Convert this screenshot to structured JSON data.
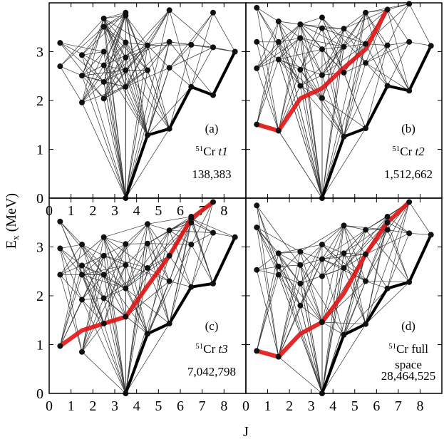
{
  "figure": {
    "ylabel_main": "E",
    "ylabel_sub": "x",
    "ylabel_unit": " (MeV)",
    "xlabel": "J"
  },
  "chart_data": [
    {
      "type": "scatter",
      "panel": "(a)",
      "label_sup": "51",
      "label_main": "Cr",
      "label_italic": "t1",
      "label_line2": "",
      "dimension": "138,383",
      "xlim": [
        0,
        9
      ],
      "ylim": [
        0,
        4
      ],
      "xticks": [
        "0",
        "1",
        "2",
        "3",
        "4",
        "5",
        "6",
        "7",
        "8"
      ],
      "yticks": [
        "0",
        "1",
        "2",
        "3"
      ],
      "levels": [
        [
          0.5,
          3.18
        ],
        [
          0.5,
          2.7
        ],
        [
          1.5,
          2.93
        ],
        [
          1.5,
          2.51
        ],
        [
          1.5,
          1.96
        ],
        [
          2.5,
          3.68
        ],
        [
          2.5,
          3.51
        ],
        [
          2.5,
          3.0
        ],
        [
          2.5,
          2.72
        ],
        [
          2.5,
          2.38
        ],
        [
          2.5,
          2.04
        ],
        [
          3.5,
          3.8
        ],
        [
          3.5,
          3.74
        ],
        [
          3.5,
          3.19
        ],
        [
          3.5,
          2.88
        ],
        [
          3.5,
          2.62
        ],
        [
          3.5,
          2.28
        ],
        [
          3.5,
          0.0
        ],
        [
          4.5,
          3.13
        ],
        [
          4.5,
          2.62
        ],
        [
          4.5,
          1.29
        ],
        [
          5.5,
          3.85
        ],
        [
          5.5,
          3.2
        ],
        [
          5.5,
          2.67
        ],
        [
          5.5,
          1.42
        ],
        [
          6.5,
          3.14
        ],
        [
          6.5,
          2.28
        ],
        [
          7.5,
          3.8
        ],
        [
          7.5,
          3.09
        ],
        [
          7.5,
          2.11
        ],
        [
          8.5,
          3.0
        ]
      ],
      "yrast": [
        [
          3.5,
          0.0
        ],
        [
          4.5,
          1.29
        ],
        [
          5.5,
          1.42
        ],
        [
          6.5,
          2.28
        ],
        [
          7.5,
          2.11
        ],
        [
          8.5,
          3.0
        ]
      ],
      "red_band": []
    },
    {
      "type": "scatter",
      "panel": "(b)",
      "label_sup": "51",
      "label_main": "Cr",
      "label_italic": "t2",
      "label_line2": "",
      "dimension": "1,512,662",
      "xlim": [
        0,
        9
      ],
      "ylim": [
        0,
        4
      ],
      "xticks": [],
      "yticks": [],
      "levels": [
        [
          0.5,
          3.9
        ],
        [
          0.5,
          3.2
        ],
        [
          0.5,
          2.66
        ],
        [
          0.5,
          1.51
        ],
        [
          1.5,
          3.62
        ],
        [
          1.5,
          3.2
        ],
        [
          1.5,
          2.84
        ],
        [
          1.5,
          1.38
        ],
        [
          2.5,
          3.56
        ],
        [
          2.5,
          3.28
        ],
        [
          2.5,
          2.63
        ],
        [
          2.5,
          2.3
        ],
        [
          3.5,
          3.7
        ],
        [
          3.5,
          3.48
        ],
        [
          3.5,
          3.05
        ],
        [
          3.5,
          2.52
        ],
        [
          3.5,
          2.05
        ],
        [
          3.5,
          0.0
        ],
        [
          4.5,
          3.47
        ],
        [
          4.5,
          3.1
        ],
        [
          4.5,
          2.57
        ],
        [
          4.5,
          1.26
        ],
        [
          5.5,
          3.8
        ],
        [
          5.5,
          3.16
        ],
        [
          5.5,
          2.77
        ],
        [
          5.5,
          1.43
        ],
        [
          6.5,
          3.86
        ],
        [
          6.5,
          3.13
        ],
        [
          6.5,
          2.3
        ],
        [
          7.5,
          3.98
        ],
        [
          7.5,
          3.2
        ],
        [
          7.5,
          2.2
        ],
        [
          8.5,
          3.12
        ]
      ],
      "yrast": [
        [
          3.5,
          0.0
        ],
        [
          4.5,
          1.26
        ],
        [
          5.5,
          1.43
        ],
        [
          6.5,
          2.3
        ],
        [
          7.5,
          2.2
        ],
        [
          8.5,
          3.12
        ]
      ],
      "red_band": [
        [
          0.5,
          1.51
        ],
        [
          1.5,
          1.38
        ],
        [
          2.5,
          2.04
        ],
        [
          3.5,
          2.25
        ],
        [
          4.5,
          2.67
        ],
        [
          5.5,
          3.05
        ],
        [
          6.5,
          3.88
        ]
      ]
    },
    {
      "type": "scatter",
      "panel": "(c)",
      "label_sup": "51",
      "label_main": "Cr",
      "label_italic": "t3",
      "label_line2": "",
      "dimension": "7,042,798",
      "xlim": [
        0,
        9
      ],
      "ylim": [
        0,
        4
      ],
      "xticks": [
        "0",
        "1",
        "2",
        "3",
        "4",
        "5",
        "6",
        "7",
        "8"
      ],
      "yticks": [
        "0",
        "1",
        "2",
        "3"
      ],
      "levels": [
        [
          0.5,
          3.52
        ],
        [
          0.5,
          2.97
        ],
        [
          0.5,
          2.43
        ],
        [
          0.5,
          0.97
        ],
        [
          1.5,
          3.05
        ],
        [
          1.5,
          2.62
        ],
        [
          1.5,
          2.43
        ],
        [
          1.5,
          1.92
        ],
        [
          1.5,
          0.85
        ],
        [
          2.5,
          3.2
        ],
        [
          2.5,
          2.82
        ],
        [
          2.5,
          2.43
        ],
        [
          2.5,
          1.95
        ],
        [
          2.5,
          1.43
        ],
        [
          3.5,
          3.06
        ],
        [
          3.5,
          2.63
        ],
        [
          3.5,
          2.15
        ],
        [
          3.5,
          1.57
        ],
        [
          3.5,
          0.0
        ],
        [
          4.5,
          3.47
        ],
        [
          4.5,
          3.07
        ],
        [
          4.5,
          2.57
        ],
        [
          4.5,
          1.22
        ],
        [
          5.5,
          3.34
        ],
        [
          5.5,
          2.82
        ],
        [
          5.5,
          2.3
        ],
        [
          5.5,
          1.43
        ],
        [
          6.5,
          3.62
        ],
        [
          6.5,
          3.58
        ],
        [
          6.5,
          3.5
        ],
        [
          6.5,
          3.05
        ],
        [
          6.5,
          2.18
        ],
        [
          7.5,
          3.92
        ],
        [
          7.5,
          3.29
        ],
        [
          7.5,
          2.25
        ],
        [
          8.5,
          3.2
        ]
      ],
      "yrast": [
        [
          3.5,
          0.0
        ],
        [
          4.5,
          1.22
        ],
        [
          5.5,
          1.43
        ],
        [
          6.5,
          2.18
        ],
        [
          7.5,
          2.25
        ],
        [
          8.5,
          3.2
        ]
      ],
      "red_band": [
        [
          0.5,
          0.97
        ],
        [
          1.5,
          1.29
        ],
        [
          2.5,
          1.43
        ],
        [
          3.5,
          1.57
        ],
        [
          4.5,
          2.2
        ],
        [
          5.5,
          2.82
        ],
        [
          6.5,
          3.58
        ],
        [
          7.5,
          3.92
        ]
      ]
    },
    {
      "type": "scatter",
      "panel": "(d)",
      "label_sup": "51",
      "label_main": "Cr",
      "label_italic": "",
      "label_line1_suffix": " full",
      "label_line2": "space",
      "dimension": "28,464,525",
      "xlim": [
        0,
        9
      ],
      "ylim": [
        0,
        4
      ],
      "xticks": [
        "0",
        "1",
        "2",
        "3",
        "4",
        "5",
        "6",
        "7",
        "8"
      ],
      "yticks": [],
      "levels": [
        [
          0.5,
          3.85
        ],
        [
          0.5,
          3.4
        ],
        [
          0.5,
          2.53
        ],
        [
          0.5,
          0.87
        ],
        [
          1.5,
          2.87
        ],
        [
          1.5,
          2.6
        ],
        [
          1.5,
          2.43
        ],
        [
          1.5,
          0.75
        ],
        [
          2.5,
          2.9
        ],
        [
          2.5,
          2.63
        ],
        [
          2.5,
          2.25
        ],
        [
          2.5,
          1.8
        ],
        [
          3.5,
          3.05
        ],
        [
          3.5,
          2.75
        ],
        [
          3.5,
          2.4
        ],
        [
          3.5,
          1.46
        ],
        [
          3.5,
          0.0
        ],
        [
          4.5,
          3.44
        ],
        [
          4.5,
          2.87
        ],
        [
          4.5,
          2.57
        ],
        [
          4.5,
          1.2
        ],
        [
          5.5,
          3.35
        ],
        [
          5.5,
          2.85
        ],
        [
          5.5,
          2.3
        ],
        [
          5.5,
          1.42
        ],
        [
          6.5,
          3.62
        ],
        [
          6.5,
          3.5
        ],
        [
          6.5,
          3.35
        ],
        [
          6.5,
          2.15
        ],
        [
          7.5,
          3.92
        ],
        [
          7.5,
          3.28
        ],
        [
          7.5,
          2.28
        ],
        [
          8.5,
          3.25
        ]
      ],
      "yrast": [
        [
          3.5,
          0.0
        ],
        [
          4.5,
          1.2
        ],
        [
          5.5,
          1.42
        ],
        [
          6.5,
          2.15
        ],
        [
          7.5,
          2.28
        ],
        [
          8.5,
          3.25
        ]
      ],
      "red_band": [
        [
          0.5,
          0.87
        ],
        [
          1.5,
          0.75
        ],
        [
          2.5,
          1.22
        ],
        [
          3.5,
          1.46
        ],
        [
          4.5,
          2.05
        ],
        [
          5.5,
          2.85
        ],
        [
          6.5,
          3.5
        ],
        [
          7.5,
          3.92
        ]
      ]
    }
  ]
}
